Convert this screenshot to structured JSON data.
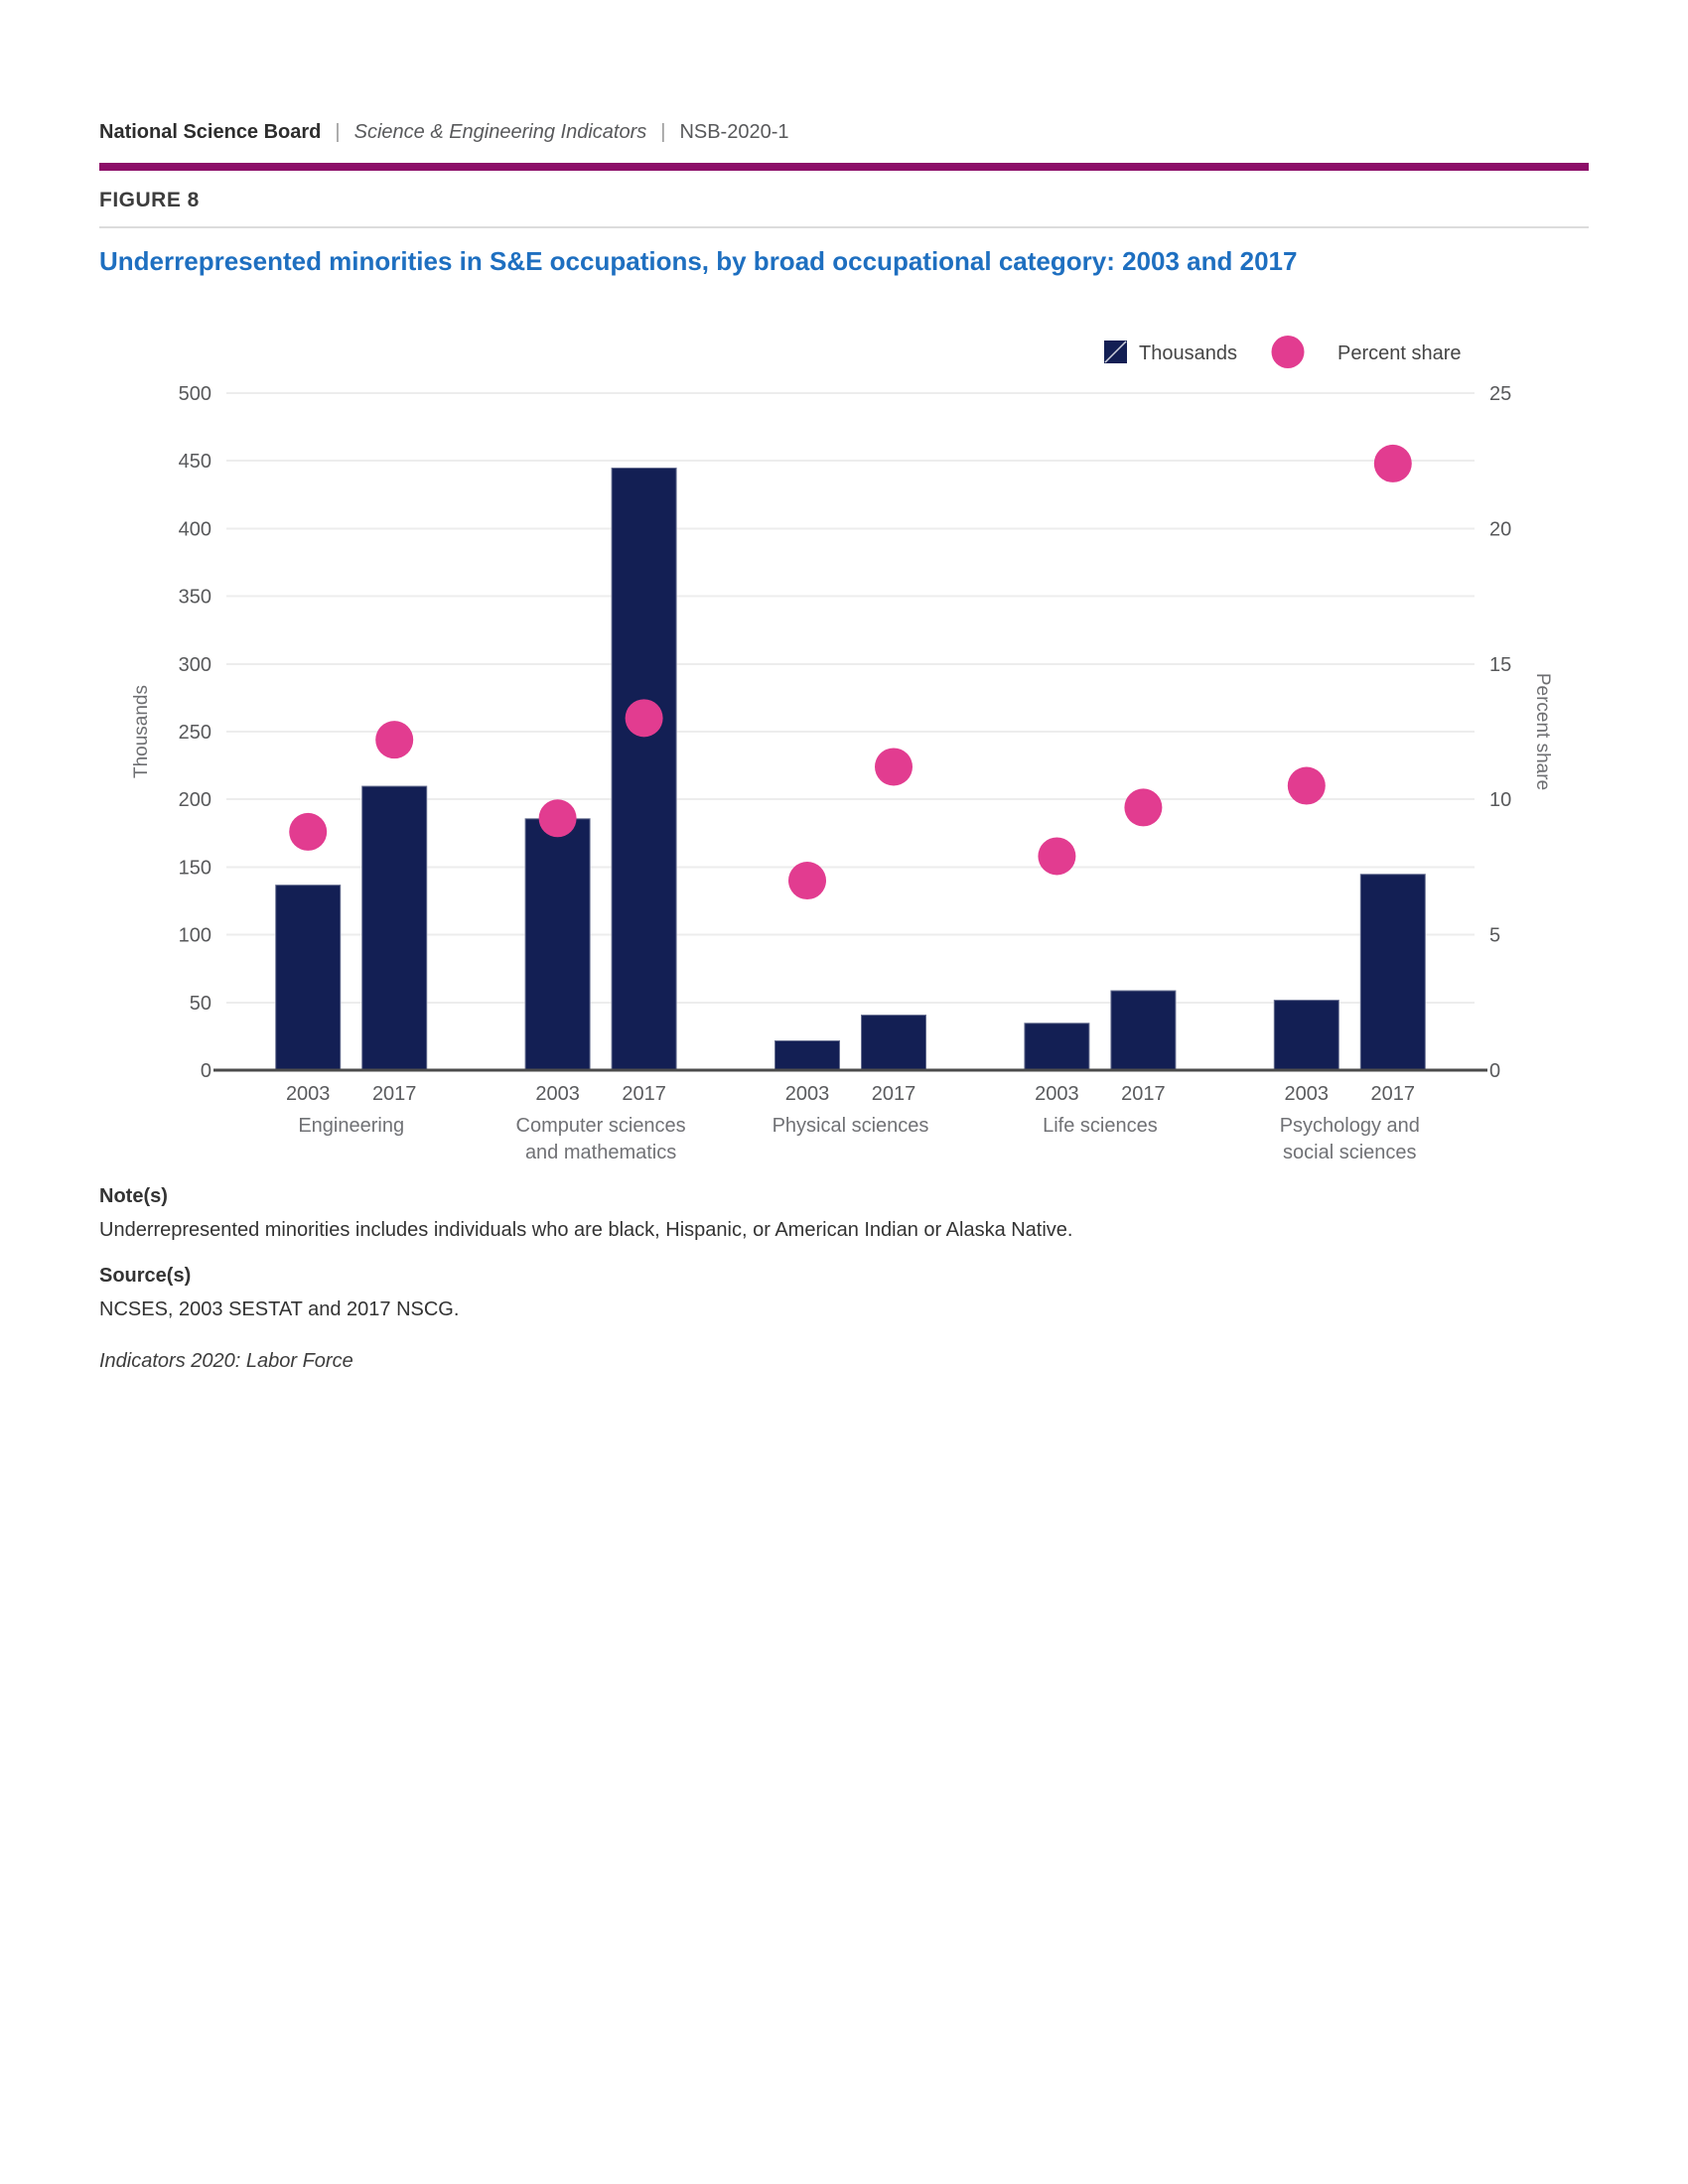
{
  "header": {
    "brand": "National Science Board",
    "separator": "|",
    "publication": "Science & Engineering Indicators",
    "code": "NSB-2020-1"
  },
  "figure": {
    "label": "FIGURE 8",
    "title": "Underrepresented minorities in S&E occupations, by broad occupational category: 2003 and 2017"
  },
  "chart_data": {
    "type": "combo-bar-scatter",
    "title": "Underrepresented minorities in S&E occupations, by broad occupational category: 2003 and 2017",
    "categories": [
      "Engineering",
      "Computer sciences and mathematics",
      "Physical sciences",
      "Life sciences",
      "Psychology and social sciences"
    ],
    "category_label_lines": [
      [
        "Engineering"
      ],
      [
        "Computer sciences",
        "and mathematics"
      ],
      [
        "Physical sciences"
      ],
      [
        "Life sciences"
      ],
      [
        "Psychology and",
        "social sciences"
      ]
    ],
    "years": [
      "2003",
      "2017"
    ],
    "series": [
      {
        "name": "Thousands",
        "type": "bar",
        "axis": "left",
        "color": "#131f54",
        "values": [
          [
            137,
            210
          ],
          [
            186,
            445
          ],
          [
            22,
            41
          ],
          [
            35,
            59
          ],
          [
            52,
            145
          ]
        ]
      },
      {
        "name": "Percent share",
        "type": "scatter",
        "axis": "right",
        "color": "#e23c90",
        "values": [
          [
            8.8,
            12.2
          ],
          [
            9.3,
            13.0
          ],
          [
            7.0,
            11.2
          ],
          [
            7.9,
            9.7
          ],
          [
            10.5,
            22.4
          ]
        ]
      }
    ],
    "left_axis": {
      "title": "Thousands",
      "min": 0,
      "max": 500,
      "tick_step": 50
    },
    "right_axis": {
      "title": "Percent share",
      "min": 0,
      "max": 25,
      "label_step": 5,
      "grid_step": 2.5
    },
    "legend": [
      {
        "label": "Thousands",
        "swatch": "square",
        "color": "#131f54"
      },
      {
        "label": "Percent share",
        "swatch": "circle",
        "color": "#e23c90"
      }
    ],
    "legend_position": "top-right",
    "grid": true,
    "grid_color": "#ededed",
    "axis_line_color": "#4b4b4b",
    "tick_label_color": "#58595b",
    "axis_title_color": "#6d6e71",
    "legend_text_color": "#454545"
  },
  "notes": {
    "notes_heading": "Note(s)",
    "notes_text": "Underrepresented minorities includes individuals who are black, Hispanic, or American Indian or Alaska Native.",
    "sources_heading": "Source(s)",
    "sources_text": "NCSES, 2003 SESTAT and 2017 NSCG.",
    "footer": "Indicators 2020: Labor Force"
  },
  "colors": {
    "rule": "#8c0e68",
    "title": "#1e6fc0",
    "bar": "#131f54",
    "dot": "#e23c90"
  }
}
